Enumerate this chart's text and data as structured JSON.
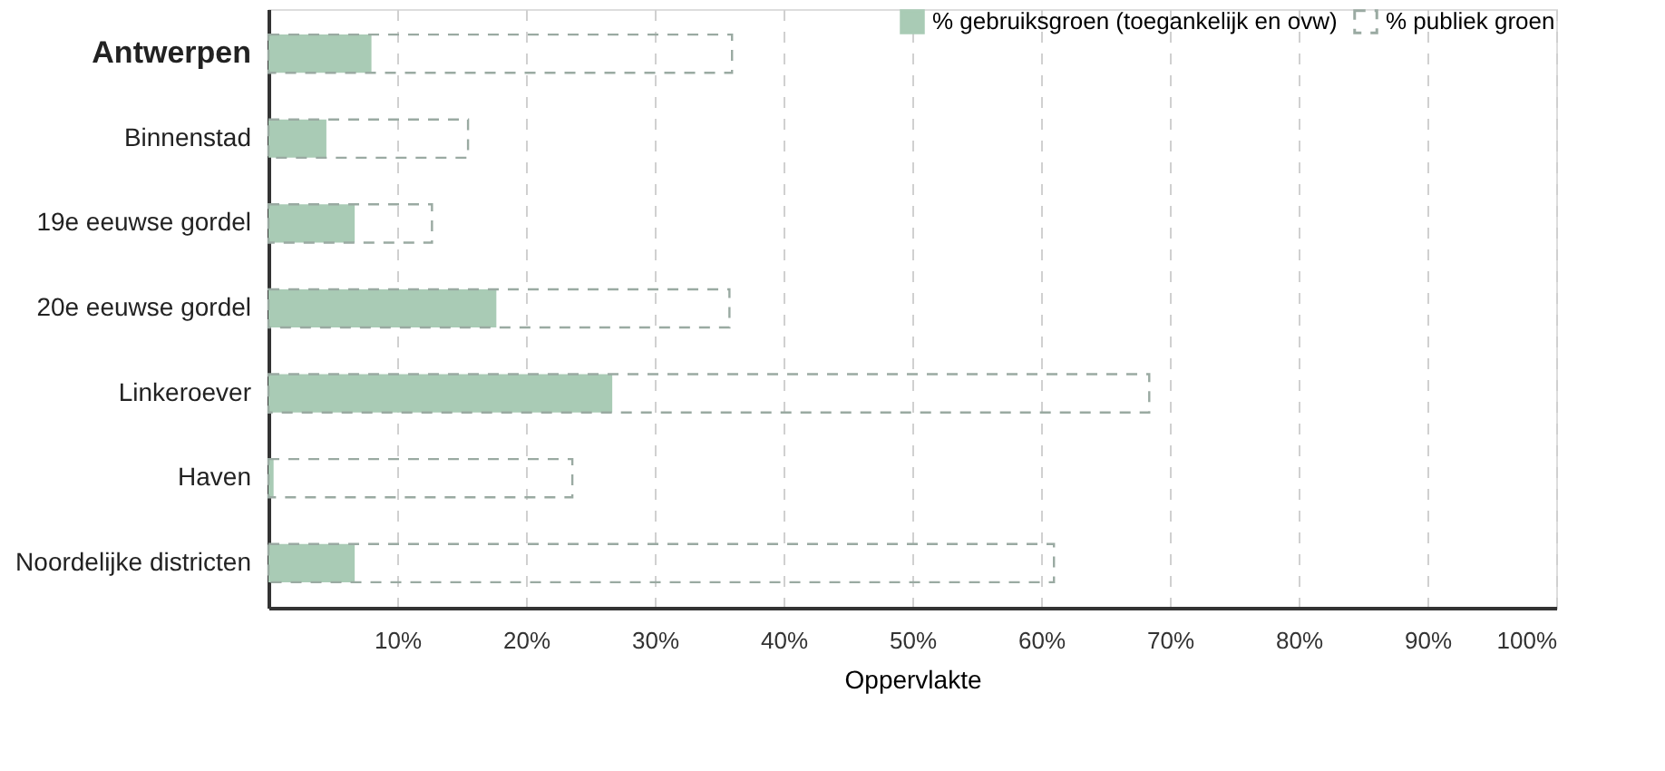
{
  "chart_data": {
    "type": "bar",
    "orientation": "horizontal",
    "xlabel": "Oppervlakte",
    "categories": [
      "Antwerpen",
      "Binnenstad",
      "19e eeuwse gordel",
      "20e eeuwse gordel",
      "Linkeroever",
      "Haven",
      "Noordelijke districten"
    ],
    "series": [
      {
        "name": "% gebruiksgroen (toegankelijk en ovw)",
        "color": "#a9cbb5",
        "values": [
          8,
          4.5,
          6.7,
          17.7,
          26.7,
          0.4,
          6.7
        ]
      },
      {
        "name": "% publiek groen",
        "color": "#9aaaa2",
        "line_style": "dashed",
        "values": [
          36,
          15.5,
          12.7,
          35.8,
          68.4,
          23.6,
          61
        ]
      }
    ],
    "xlim": [
      0,
      100
    ],
    "xticks": [
      {
        "value": 10,
        "label": "10%"
      },
      {
        "value": 20,
        "label": "20%"
      },
      {
        "value": 30,
        "label": "30%"
      },
      {
        "value": 40,
        "label": "40%"
      },
      {
        "value": 50,
        "label": "50%"
      },
      {
        "value": 60,
        "label": "60%"
      },
      {
        "value": 70,
        "label": "70%"
      },
      {
        "value": 80,
        "label": "80%"
      },
      {
        "value": 90,
        "label": "90%"
      },
      {
        "value": 100,
        "label": "100%"
      }
    ],
    "grid": "x",
    "legend": "top right"
  }
}
